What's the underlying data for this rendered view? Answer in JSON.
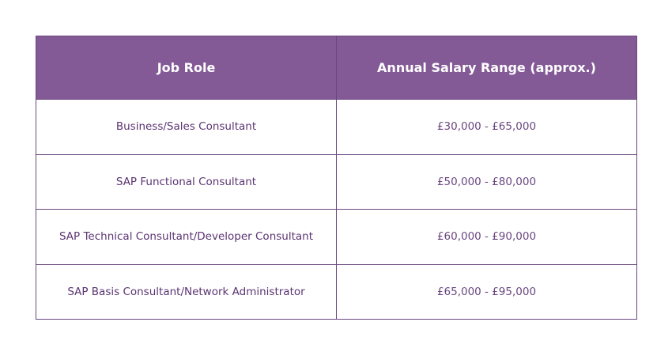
{
  "table": {
    "headers": [
      "Job Role",
      "Annual Salary Range (approx.)"
    ],
    "rows": [
      {
        "role": "Business/Sales Consultant",
        "range": "£30,000 - £65,000"
      },
      {
        "role": "SAP Functional Consultant",
        "range": "£50,000 - £80,000"
      },
      {
        "role": "SAP Technical Consultant/Developer Consultant",
        "range": "£60,000 - £90,000"
      },
      {
        "role": "SAP Basis Consultant/Network Administrator",
        "range": "£65,000 - £95,000"
      }
    ]
  },
  "colors": {
    "header_bg": "#835a96",
    "header_text": "#ffffff",
    "border": "#6a4680",
    "body_text": "#5b3472"
  }
}
